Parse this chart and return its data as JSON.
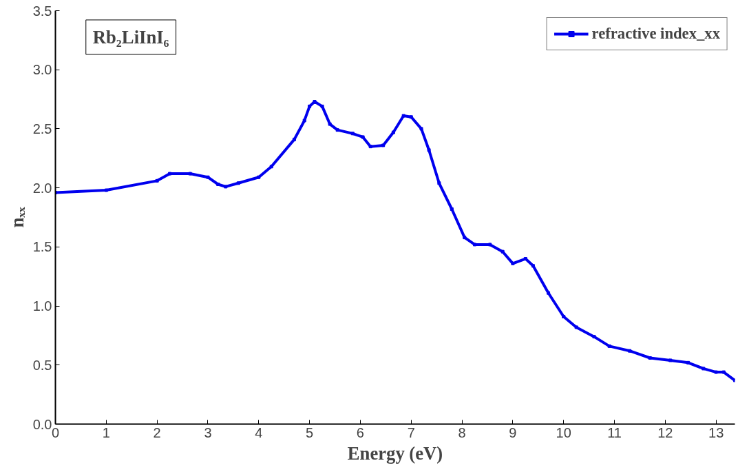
{
  "chart_data": {
    "type": "line",
    "xlabel": "Energy (eV)",
    "ylabel": "nₓₓ",
    "annotations": [
      "Rb₂LiInI₆"
    ],
    "series": [
      {
        "name": "refractive index_xx",
        "color": "#0000ee",
        "x": [
          0,
          1,
          2,
          2.25,
          2.65,
          3.0,
          3.2,
          3.35,
          3.6,
          4.0,
          4.25,
          4.7,
          4.9,
          5.0,
          5.1,
          5.25,
          5.4,
          5.55,
          5.85,
          6.05,
          6.2,
          6.45,
          6.65,
          6.85,
          7.0,
          7.2,
          7.35,
          7.55,
          7.8,
          8.05,
          8.25,
          8.55,
          8.8,
          9.0,
          9.25,
          9.4,
          9.7,
          10.0,
          10.25,
          10.6,
          10.9,
          11.3,
          11.7,
          12.1,
          12.45,
          12.75,
          13.0,
          13.15,
          13.37
        ],
        "values": [
          1.96,
          1.98,
          2.06,
          2.12,
          2.12,
          2.09,
          2.03,
          2.01,
          2.04,
          2.09,
          2.18,
          2.41,
          2.57,
          2.69,
          2.73,
          2.69,
          2.54,
          2.49,
          2.46,
          2.43,
          2.35,
          2.36,
          2.47,
          2.61,
          2.6,
          2.5,
          2.32,
          2.04,
          1.82,
          1.58,
          1.52,
          1.52,
          1.46,
          1.36,
          1.4,
          1.34,
          1.11,
          0.91,
          0.82,
          0.74,
          0.66,
          0.62,
          0.56,
          0.54,
          0.52,
          0.47,
          0.44,
          0.44,
          0.37
        ]
      }
    ],
    "xlim": [
      0,
      13.37
    ],
    "xticks": [
      0,
      1,
      2,
      3,
      4,
      5,
      6,
      7,
      8,
      9,
      10,
      11,
      12,
      13
    ],
    "ylim": [
      0,
      3.5
    ],
    "yticks": [
      {
        "value": 0,
        "label": "0.0"
      },
      {
        "value": 0.5,
        "label": "0.5"
      },
      {
        "value": 1,
        "label": "1.0"
      },
      {
        "value": 1.5,
        "label": "1.5"
      },
      {
        "value": 2,
        "label": "2.0"
      },
      {
        "value": 2.5,
        "label": "2.5"
      },
      {
        "value": 3,
        "label": "3.0"
      },
      {
        "value": 3.5,
        "label": "3.5"
      }
    ],
    "grid": false,
    "legend": "top right",
    "marker": "square",
    "line_style": "solid"
  }
}
